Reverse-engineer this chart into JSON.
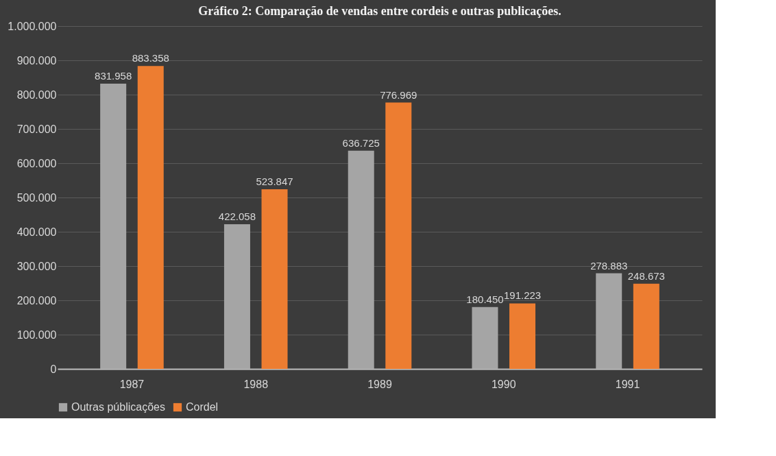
{
  "chart_data": {
    "type": "bar",
    "title": "Gráfico 2: Comparação de vendas entre cordeis e outras publicações.",
    "categories": [
      "1987",
      "1988",
      "1989",
      "1990",
      "1991"
    ],
    "series": [
      {
        "name": "Outras públicações",
        "color": "#a5a5a5",
        "values": [
          831958,
          422058,
          636725,
          180450,
          278883
        ],
        "value_labels": [
          "831.958",
          "422.058",
          "636.725",
          "180.450",
          "278.883"
        ]
      },
      {
        "name": "Cordel",
        "color": "#ed7d31",
        "values": [
          883358,
          523847,
          776969,
          191223,
          248673
        ],
        "value_labels": [
          "883.358",
          "523.847",
          "776.969",
          "191.223",
          "248.673"
        ]
      }
    ],
    "ylim": [
      0,
      1000000
    ],
    "yticks": [
      {
        "value": 0,
        "label": "0"
      },
      {
        "value": 100000,
        "label": "100.000"
      },
      {
        "value": 200000,
        "label": "200.000"
      },
      {
        "value": 300000,
        "label": "300.000"
      },
      {
        "value": 400000,
        "label": "400.000"
      },
      {
        "value": 500000,
        "label": "500.000"
      },
      {
        "value": 600000,
        "label": "600.000"
      },
      {
        "value": 700000,
        "label": "700.000"
      },
      {
        "value": 800000,
        "label": "800.000"
      },
      {
        "value": 900000,
        "label": "900.000"
      },
      {
        "value": 1000000,
        "label": "1.000.000"
      }
    ],
    "grid": "y",
    "legend": "bottom"
  }
}
